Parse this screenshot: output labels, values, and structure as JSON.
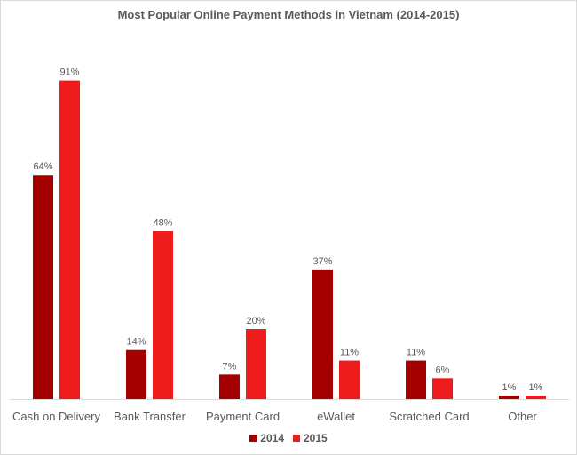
{
  "chart_data": {
    "type": "bar",
    "title": "Most Popular Online Payment Methods in Vietnam (2014-2015)",
    "categories": [
      "Cash on Delivery",
      "Bank Transfer",
      "Payment Card",
      "eWallet",
      "Scratched Card",
      "Other"
    ],
    "series": [
      {
        "name": "2014",
        "color": "#a50000",
        "values": [
          64,
          14,
          7,
          37,
          11,
          1
        ],
        "labels": [
          "64%",
          "14%",
          "7%",
          "37%",
          "11%",
          "1%"
        ]
      },
      {
        "name": "2015",
        "color": "#ee1c1c",
        "values": [
          91,
          48,
          20,
          11,
          6,
          1
        ],
        "labels": [
          "91%",
          "48%",
          "20%",
          "11%",
          "6%",
          "1%"
        ]
      }
    ],
    "ylim": [
      0,
      100
    ],
    "grid": false,
    "legend_position": "bottom",
    "xlabel": "",
    "ylabel": ""
  }
}
